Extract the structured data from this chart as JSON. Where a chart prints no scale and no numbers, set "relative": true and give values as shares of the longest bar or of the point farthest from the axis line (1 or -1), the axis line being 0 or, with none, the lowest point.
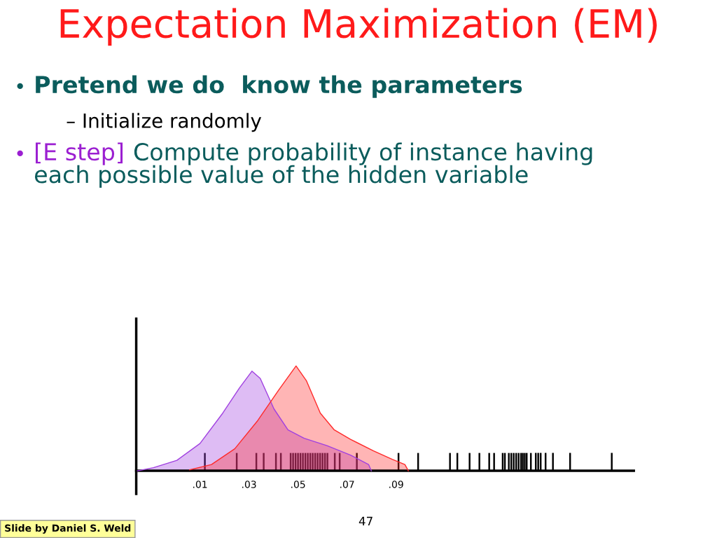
{
  "chart_data": {
    "type": "area",
    "relative": true,
    "title": "Expectation Maximization (EM)",
    "annotations": [
      "Pretend we do  know the parameters",
      "– Initialize randomly",
      "[E step]",
      "Compute probability of instance having each possible value of the hidden variable",
      "Slide by Daniel S. Weld",
      "47"
    ],
    "xlim": [
      -0.016,
      0.187
    ],
    "xticks": [
      {
        "value": 0.01,
        "label": ".01"
      },
      {
        "value": 0.03,
        "label": ".03"
      },
      {
        "value": 0.05,
        "label": ".05"
      },
      {
        "value": 0.07,
        "label": ".07"
      },
      {
        "value": 0.09,
        "label": ".09"
      }
    ],
    "series": [
      {
        "type": "bar",
        "color": "#000000",
        "x": [
          0.012,
          0.025,
          0.033,
          0.036,
          0.041,
          0.043,
          0.047,
          0.048,
          0.049,
          0.05,
          0.051,
          0.052,
          0.053,
          0.054,
          0.055,
          0.056,
          0.057,
          0.058,
          0.059,
          0.06,
          0.061,
          0.062,
          0.065,
          0.067,
          0.074,
          0.091,
          0.099,
          0.112,
          0.115,
          0.12,
          0.124,
          0.128,
          0.13,
          0.1335,
          0.1344,
          0.136,
          0.137,
          0.138,
          0.139,
          0.14,
          0.141,
          0.1417,
          0.1425,
          0.1433,
          0.145,
          0.147,
          0.148,
          0.149,
          0.151,
          0.154,
          0.161,
          0.178
        ],
        "values": [
          0.17,
          0.17,
          0.17,
          0.17,
          0.17,
          0.17,
          0.17,
          0.17,
          0.17,
          0.17,
          0.17,
          0.17,
          0.17,
          0.17,
          0.17,
          0.17,
          0.17,
          0.17,
          0.17,
          0.17,
          0.17,
          0.17,
          0.17,
          0.17,
          0.17,
          0.17,
          0.17,
          0.17,
          0.17,
          0.17,
          0.17,
          0.17,
          0.17,
          0.17,
          0.17,
          0.17,
          0.17,
          0.17,
          0.17,
          0.17,
          0.17,
          0.17,
          0.17,
          0.17,
          0.17,
          0.17,
          0.17,
          0.17,
          0.17,
          0.17,
          0.17,
          0.17
        ]
      },
      {
        "color": "#a040e0",
        "x": [
          -0.0155,
          -0.009,
          0.0006,
          0.01,
          0.0193,
          0.0261,
          0.0312,
          0.0346,
          0.0402,
          0.0459,
          0.0525,
          0.0618,
          0.0714,
          0.0788,
          0.0799
        ],
        "values": [
          0,
          0.03,
          0.1,
          0.26,
          0.55,
          0.79,
          0.95,
          0.88,
          0.59,
          0.39,
          0.31,
          0.24,
          0.15,
          0.06,
          0
        ]
      },
      {
        "color": "#ff2a2a",
        "x": [
          0.0058,
          0.0147,
          0.0242,
          0.0336,
          0.0421,
          0.0492,
          0.0534,
          0.0591,
          0.0648,
          0.0714,
          0.0808,
          0.0884,
          0.0936,
          0.095
        ],
        "values": [
          0.01,
          0.06,
          0.21,
          0.48,
          0.77,
          1,
          0.86,
          0.55,
          0.39,
          0.3,
          0.19,
          0.11,
          0.06,
          0
        ]
      }
    ]
  }
}
